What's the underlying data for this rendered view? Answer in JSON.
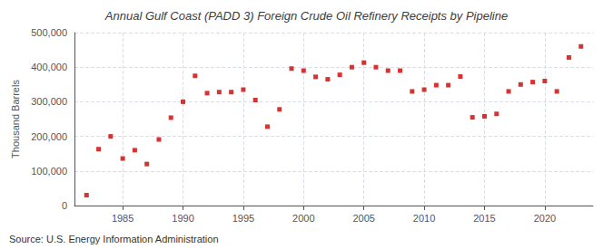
{
  "chart_data": {
    "type": "scatter",
    "title": "Annual Gulf Coast (PADD 3) Foreign Crude Oil Refinery Receipts by Pipeline",
    "ylabel": "Thousand Barrels",
    "annotations": [
      "Source: U.S. Energy Information Administration"
    ],
    "x": [
      1982,
      1983,
      1984,
      1985,
      1986,
      1987,
      1988,
      1989,
      1990,
      1991,
      1992,
      1993,
      1994,
      1995,
      1996,
      1997,
      1998,
      1999,
      2000,
      2001,
      2002,
      2003,
      2004,
      2005,
      2006,
      2007,
      2008,
      2009,
      2010,
      2011,
      2012,
      2013,
      2014,
      2015,
      2016,
      2017,
      2018,
      2019,
      2020,
      2021,
      2022,
      2023
    ],
    "values": [
      30000,
      163000,
      200000,
      136000,
      160000,
      120000,
      191000,
      254000,
      300000,
      375000,
      325000,
      328000,
      328000,
      335000,
      305000,
      228000,
      278000,
      396000,
      390000,
      372000,
      365000,
      378000,
      400000,
      413000,
      400000,
      390000,
      390000,
      330000,
      335000,
      348000,
      348000,
      373000,
      255000,
      258000,
      265000,
      330000,
      350000,
      357000,
      360000,
      330000,
      428000,
      460000
    ],
    "color": "#CC0000",
    "marker": "square",
    "xlim": [
      1981,
      2024
    ],
    "xticks": [
      1985,
      1990,
      1995,
      2000,
      2005,
      2010,
      2015,
      2020
    ],
    "ylim": [
      0,
      500000
    ],
    "yticks": [
      0,
      {
        "value": 100000,
        "label": "100,000"
      },
      {
        "value": 200000,
        "label": "200,000"
      },
      {
        "value": 300000,
        "label": "300,000"
      },
      {
        "value": 400000,
        "label": "400,000"
      },
      {
        "value": 500000,
        "label": "500,000"
      }
    ],
    "grid": true
  }
}
